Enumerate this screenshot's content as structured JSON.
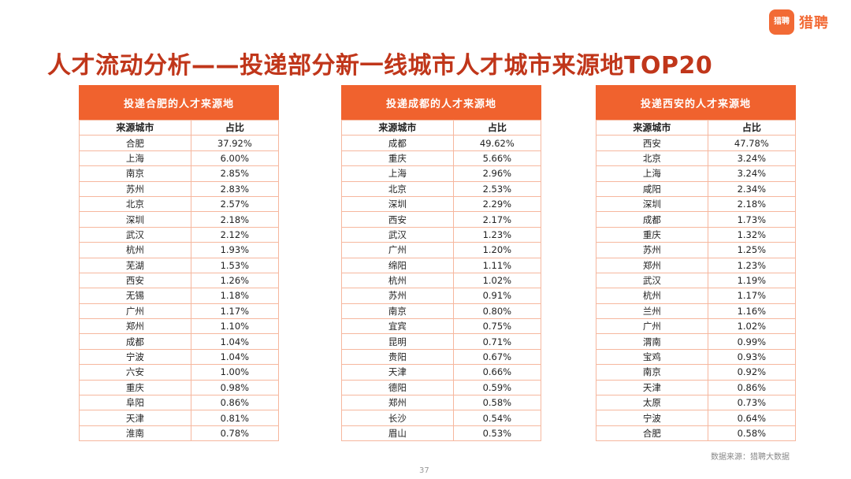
{
  "logo": {
    "icon_text": "猎聘",
    "text": "猎聘"
  },
  "title": "人才流动分析——投递部分新一线城市人才城市来源地TOP20",
  "tables": [
    {
      "header": "投递合肥的人才来源地",
      "col1": "来源城市",
      "col2": "占比",
      "rows": [
        [
          "合肥",
          "37.92%"
        ],
        [
          "上海",
          "6.00%"
        ],
        [
          "南京",
          "2.85%"
        ],
        [
          "苏州",
          "2.83%"
        ],
        [
          "北京",
          "2.57%"
        ],
        [
          "深圳",
          "2.18%"
        ],
        [
          "武汉",
          "2.12%"
        ],
        [
          "杭州",
          "1.93%"
        ],
        [
          "芜湖",
          "1.53%"
        ],
        [
          "西安",
          "1.26%"
        ],
        [
          "无锡",
          "1.18%"
        ],
        [
          "广州",
          "1.17%"
        ],
        [
          "郑州",
          "1.10%"
        ],
        [
          "成都",
          "1.04%"
        ],
        [
          "宁波",
          "1.04%"
        ],
        [
          "六安",
          "1.00%"
        ],
        [
          "重庆",
          "0.98%"
        ],
        [
          "阜阳",
          "0.86%"
        ],
        [
          "天津",
          "0.81%"
        ],
        [
          "淮南",
          "0.78%"
        ]
      ]
    },
    {
      "header": "投递成都的人才来源地",
      "col1": "来源城市",
      "col2": "占比",
      "rows": [
        [
          "成都",
          "49.62%"
        ],
        [
          "重庆",
          "5.66%"
        ],
        [
          "上海",
          "2.96%"
        ],
        [
          "北京",
          "2.53%"
        ],
        [
          "深圳",
          "2.29%"
        ],
        [
          "西安",
          "2.17%"
        ],
        [
          "武汉",
          "1.23%"
        ],
        [
          "广州",
          "1.20%"
        ],
        [
          "绵阳",
          "1.11%"
        ],
        [
          "杭州",
          "1.02%"
        ],
        [
          "苏州",
          "0.91%"
        ],
        [
          "南京",
          "0.80%"
        ],
        [
          "宜宾",
          "0.75%"
        ],
        [
          "昆明",
          "0.71%"
        ],
        [
          "贵阳",
          "0.67%"
        ],
        [
          "天津",
          "0.66%"
        ],
        [
          "德阳",
          "0.59%"
        ],
        [
          "郑州",
          "0.58%"
        ],
        [
          "长沙",
          "0.54%"
        ],
        [
          "眉山",
          "0.53%"
        ]
      ]
    },
    {
      "header": "投递西安的人才来源地",
      "col1": "来源城市",
      "col2": "占比",
      "rows": [
        [
          "西安",
          "47.78%"
        ],
        [
          "北京",
          "3.24%"
        ],
        [
          "上海",
          "3.24%"
        ],
        [
          "咸阳",
          "2.34%"
        ],
        [
          "深圳",
          "2.18%"
        ],
        [
          "成都",
          "1.73%"
        ],
        [
          "重庆",
          "1.32%"
        ],
        [
          "苏州",
          "1.25%"
        ],
        [
          "郑州",
          "1.23%"
        ],
        [
          "武汉",
          "1.19%"
        ],
        [
          "杭州",
          "1.17%"
        ],
        [
          "兰州",
          "1.16%"
        ],
        [
          "广州",
          "1.02%"
        ],
        [
          "渭南",
          "0.99%"
        ],
        [
          "宝鸡",
          "0.93%"
        ],
        [
          "南京",
          "0.92%"
        ],
        [
          "天津",
          "0.86%"
        ],
        [
          "太原",
          "0.73%"
        ],
        [
          "宁波",
          "0.64%"
        ],
        [
          "合肥",
          "0.58%"
        ]
      ]
    }
  ],
  "source_note": "数据来源：猎聘大数据",
  "page_number": "37",
  "colors": {
    "accent": "#f0622e",
    "title": "#c0361a",
    "border": "#f6b79e"
  }
}
